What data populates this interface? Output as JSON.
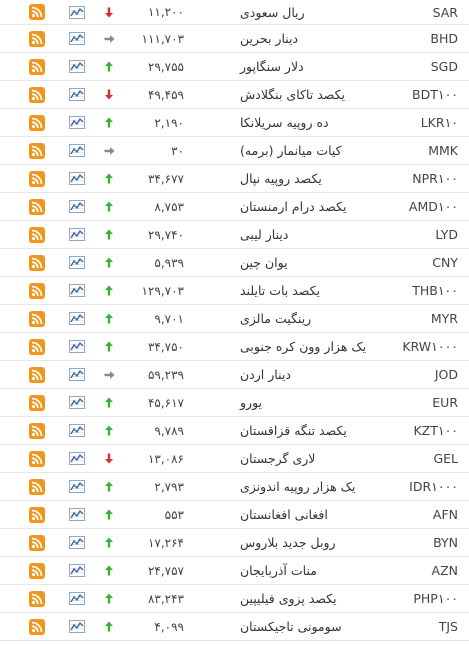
{
  "colors": {
    "up": "#3cb034",
    "down": "#d62d2d",
    "flat": "#8a8a8a",
    "rss": "#f0961e",
    "chart": "#3f67a0"
  },
  "rows": [
    {
      "code": "SAR",
      "name": "ریال سعودی",
      "price": "۱۱,۲۰۰",
      "trend": "down"
    },
    {
      "code": "BHD",
      "name": "دینار بحرین",
      "price": "۱۱۱,۷۰۳",
      "trend": "flat"
    },
    {
      "code": "SGD",
      "name": "دلار سنگاپور",
      "price": "۲۹,۷۵۵",
      "trend": "up"
    },
    {
      "code": "BDT۱۰۰",
      "name": "یکصد تاکای بنگلادش",
      "price": "۴۹,۴۵۹",
      "trend": "down"
    },
    {
      "code": "LKR۱۰",
      "name": "ده روپیه سریلانکا",
      "price": "۲,۱۹۰",
      "trend": "up"
    },
    {
      "code": "MMK",
      "name": "کیات میانمار (برمه)",
      "price": "۳۰",
      "trend": "flat"
    },
    {
      "code": "NPR۱۰۰",
      "name": "یکصد روپیه نپال",
      "price": "۳۴,۶۷۷",
      "trend": "up"
    },
    {
      "code": "AMD۱۰۰",
      "name": "یکصد درام ارمنستان",
      "price": "۸,۷۵۳",
      "trend": "up"
    },
    {
      "code": "LYD",
      "name": "دینار لیبی",
      "price": "۲۹,۷۴۰",
      "trend": "up"
    },
    {
      "code": "CNY",
      "name": "یوان چین",
      "price": "۵,۹۳۹",
      "trend": "up"
    },
    {
      "code": "THB۱۰۰",
      "name": "یکصد بات تایلند",
      "price": "۱۲۹,۷۰۳",
      "trend": "up"
    },
    {
      "code": "MYR",
      "name": "رینگیت مالزی",
      "price": "۹,۷۰۱",
      "trend": "up"
    },
    {
      "code": "KRW۱۰۰۰",
      "name": "یک هزار وون کره جنوبی",
      "price": "۳۴,۷۵۰",
      "trend": "up"
    },
    {
      "code": "JOD",
      "name": "دینار اردن",
      "price": "۵۹,۲۳۹",
      "trend": "flat"
    },
    {
      "code": "EUR",
      "name": "یورو",
      "price": "۴۵,۶۱۷",
      "trend": "up"
    },
    {
      "code": "KZT۱۰۰",
      "name": "یکصد تنگه قزاقستان",
      "price": "۹,۷۸۹",
      "trend": "up"
    },
    {
      "code": "GEL",
      "name": "لاری گرجستان",
      "price": "۱۳,۰۸۶",
      "trend": "down"
    },
    {
      "code": "IDR۱۰۰۰",
      "name": "یک هزار روپیه اندونزی",
      "price": "۲,۷۹۳",
      "trend": "up"
    },
    {
      "code": "AFN",
      "name": "افغانی افغانستان",
      "price": "۵۵۳",
      "trend": "up"
    },
    {
      "code": "BYN",
      "name": "روبل جدید بلاروس",
      "price": "۱۷,۲۶۴",
      "trend": "up"
    },
    {
      "code": "AZN",
      "name": "منات آذربایجان",
      "price": "۲۴,۷۵۷",
      "trend": "up"
    },
    {
      "code": "PHP۱۰۰",
      "name": "یکصد پزوی فیلیپین",
      "price": "۸۳,۲۴۳",
      "trend": "up"
    },
    {
      "code": "TJS",
      "name": "سومونی تاجیکستان",
      "price": "۴,۰۹۹",
      "trend": "up"
    }
  ]
}
